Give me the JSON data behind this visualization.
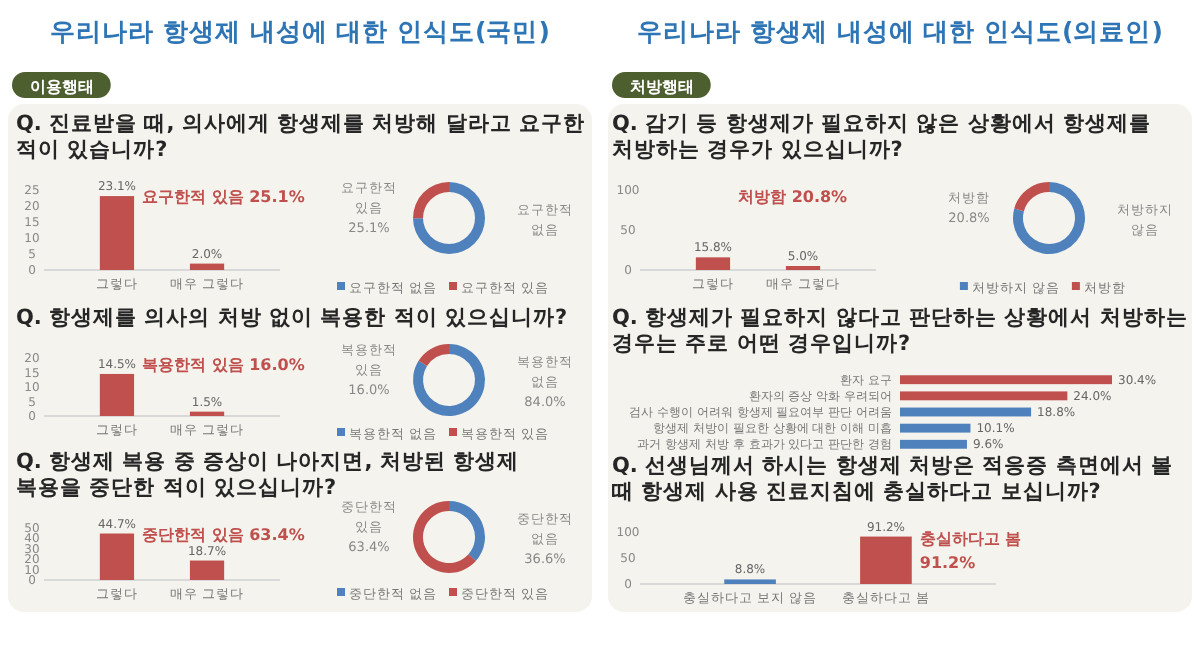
{
  "chart_data": [
    {
      "type": "other",
      "title": "우리나라 항생제 내성에 대한 인식도(국민)",
      "subtitle": "이용행태"
    },
    {
      "type": "bar",
      "title": "Q. 진료받을 때, 의사에게 항생제를 처방해 달라고 요구한 적이 있습니까?",
      "categories": [
        "그렇다",
        "매우 그렇다"
      ],
      "values": [
        23.1,
        2.0
      ],
      "value_labels": [
        "23.1%",
        "2.0%"
      ],
      "colors": [
        "#c0504d",
        "#c0504d"
      ],
      "ylim": [
        0,
        25
      ],
      "yticks": [
        0,
        5,
        10,
        15,
        20,
        25
      ],
      "annotations": [
        "요구한적 있음 25.1%"
      ]
    },
    {
      "type": "donut",
      "categories": [
        "요구한적 없음",
        "요구한적 있음"
      ],
      "values": [
        74.9,
        25.1
      ],
      "value_labels": [
        null,
        "25.1%"
      ],
      "colors": [
        "#4f81bd",
        "#c0504d"
      ],
      "legend": "bottom"
    },
    {
      "type": "bar",
      "title": "Q. 항생제를 의사의 처방 없이 복용한 적이 있으십니까?",
      "categories": [
        "그렇다",
        "매우 그렇다"
      ],
      "values": [
        14.5,
        1.5
      ],
      "value_labels": [
        "14.5%",
        "1.5%"
      ],
      "colors": [
        "#c0504d",
        "#c0504d"
      ],
      "ylim": [
        0,
        20
      ],
      "yticks": [
        0,
        5,
        10,
        15,
        20
      ],
      "annotations": [
        "복용한적 있음 16.0%"
      ]
    },
    {
      "type": "donut",
      "categories": [
        "복용한적 없음",
        "복용한적 있음"
      ],
      "values": [
        84.0,
        16.0
      ],
      "value_labels": [
        "84.0%",
        "16.0%"
      ],
      "colors": [
        "#4f81bd",
        "#c0504d"
      ],
      "legend": "bottom"
    },
    {
      "type": "bar",
      "title": "Q. 항생제 복용 중 증상이 나아지면, 처방된 항생제 복용을 중단한 적이 있으십니까?",
      "categories": [
        "그렇다",
        "매우 그렇다"
      ],
      "values": [
        44.7,
        18.7
      ],
      "value_labels": [
        "44.7%",
        "18.7%"
      ],
      "colors": [
        "#c0504d",
        "#c0504d"
      ],
      "ylim": [
        0,
        50
      ],
      "yticks": [
        0,
        10,
        20,
        30,
        40,
        50
      ],
      "annotations": [
        "중단한적 있음 63.4%"
      ]
    },
    {
      "type": "donut",
      "categories": [
        "중단한적 없음",
        "중단한적 있음"
      ],
      "values": [
        36.6,
        63.4
      ],
      "value_labels": [
        "36.6%",
        "63.4%"
      ],
      "colors": [
        "#4f81bd",
        "#c0504d"
      ],
      "legend": "bottom"
    },
    {
      "type": "other",
      "title": "우리나라 항생제 내성에 대한 인식도(의료인)",
      "subtitle": "처방행태"
    },
    {
      "type": "bar",
      "title": "Q. 감기 등 항생제가 필요하지 않은 상황에서 항생제를 처방하는 경우가 있으십니까?",
      "categories": [
        "그렇다",
        "매우 그렇다"
      ],
      "values": [
        15.8,
        5.0
      ],
      "value_labels": [
        "15.8%",
        "5.0%"
      ],
      "colors": [
        "#c0504d",
        "#c0504d"
      ],
      "ylim": [
        0,
        100
      ],
      "yticks": [
        0,
        50,
        100
      ],
      "annotations": [
        "처방함 20.8%"
      ]
    },
    {
      "type": "donut",
      "categories": [
        "처방하지 않음",
        "처방함"
      ],
      "values": [
        79.2,
        20.8
      ],
      "value_labels": [
        null,
        "20.8%"
      ],
      "colors": [
        "#4f81bd",
        "#c0504d"
      ],
      "legend": "bottom"
    },
    {
      "type": "bar",
      "orientation": "horizontal",
      "title": "Q. 항생제가 필요하지 않다고 판단하는 상황에서 처방하는 경우는 주로 어떤 경우입니까?",
      "categories": [
        "환자 요구",
        "환자의 증상 악화 우려되어",
        "검사 수행이 어려워 항생제 필요여부 판단 어려움",
        "항생제 처방이 필요한 상황에 대한 이해 미흡",
        "과거 항생제 처방 후 효과가 있다고 판단한 경험"
      ],
      "values": [
        30.4,
        24.0,
        18.8,
        10.1,
        9.6
      ],
      "value_labels": [
        "30.4%",
        "24.0%",
        "18.8%",
        "10.1%",
        "9.6%"
      ],
      "colors": [
        "#c0504d",
        "#c0504d",
        "#4f81bd",
        "#4f81bd",
        "#4f81bd"
      ]
    },
    {
      "type": "bar",
      "title": "Q. 선생님께서 하시는 항생제 처방은 적응증 측면에서 볼 때 항생제 사용 진료지침에 충실하다고 보십니까?",
      "categories": [
        "충실하다고 보지 않음",
        "충실하다고 봄"
      ],
      "values": [
        8.8,
        91.2
      ],
      "value_labels": [
        "8.8%",
        "91.2%"
      ],
      "colors": [
        "#4f81bd",
        "#c0504d"
      ],
      "ylim": [
        0,
        100
      ],
      "yticks": [
        0,
        50,
        100
      ],
      "annotations": [
        "충실하다고 봄 91.2%"
      ]
    }
  ]
}
